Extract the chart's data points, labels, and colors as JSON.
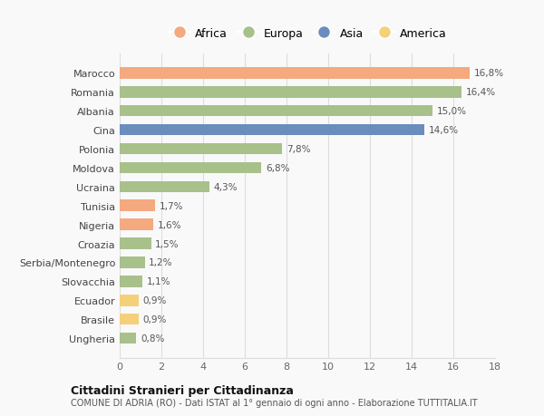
{
  "countries": [
    "Marocco",
    "Romania",
    "Albania",
    "Cina",
    "Polonia",
    "Moldova",
    "Ucraina",
    "Tunisia",
    "Nigeria",
    "Croazia",
    "Serbia/Montenegro",
    "Slovacchia",
    "Ecuador",
    "Brasile",
    "Ungheria"
  ],
  "values": [
    16.8,
    16.4,
    15.0,
    14.6,
    7.8,
    6.8,
    4.3,
    1.7,
    1.6,
    1.5,
    1.2,
    1.1,
    0.9,
    0.9,
    0.8
  ],
  "labels": [
    "16,8%",
    "16,4%",
    "15,0%",
    "14,6%",
    "7,8%",
    "6,8%",
    "4,3%",
    "1,7%",
    "1,6%",
    "1,5%",
    "1,2%",
    "1,1%",
    "0,9%",
    "0,9%",
    "0,8%"
  ],
  "continents": [
    "Africa",
    "Europa",
    "Europa",
    "Asia",
    "Europa",
    "Europa",
    "Europa",
    "Africa",
    "Africa",
    "Europa",
    "Europa",
    "Europa",
    "America",
    "America",
    "Europa"
  ],
  "colors": {
    "Africa": "#F4A97F",
    "Europa": "#A8C08A",
    "Asia": "#6B8DBE",
    "America": "#F5D07A"
  },
  "legend_order": [
    "Africa",
    "Europa",
    "Asia",
    "America"
  ],
  "title1": "Cittadini Stranieri per Cittadinanza",
  "title2": "COMUNE DI ADRIA (RO) - Dati ISTAT al 1° gennaio di ogni anno - Elaborazione TUTTITALIA.IT",
  "xlim": [
    0,
    18
  ],
  "xticks": [
    0,
    2,
    4,
    6,
    8,
    10,
    12,
    14,
    16,
    18
  ],
  "background_color": "#f9f9f9",
  "grid_color": "#dddddd"
}
